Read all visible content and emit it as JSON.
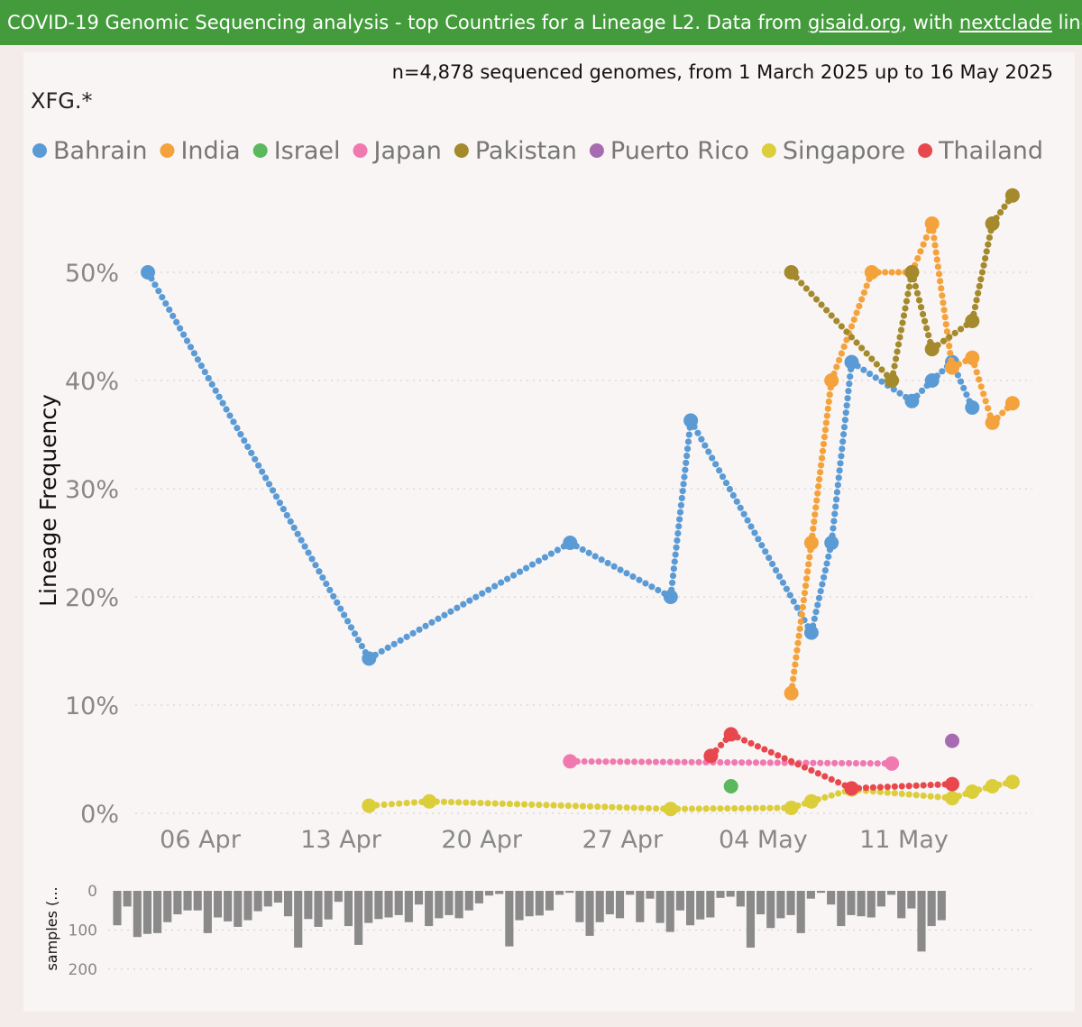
{
  "header": {
    "part1": "COVID-19 Genomic Sequencing analysis - top Countries for a Lineage L2. Data from ",
    "link1": "gisaid.org",
    "part2": ", with ",
    "link2": "nextclade",
    "part3": " lineages Sourc"
  },
  "subtitle": "n=4,878 sequenced genomes, from 1 March 2025 up to 16 May 2025",
  "lineage": "XFG.*",
  "colors": {
    "Bahrain": "#5b9bd5",
    "India": "#f4a23b",
    "Israel": "#5cb85c",
    "Japan": "#f07ab0",
    "Pakistan": "#a48a2c",
    "Puerto Rico": "#a66bb0",
    "Singapore": "#dccd3a",
    "Thailand": "#e8484d",
    "bars": "#8a8a8a"
  },
  "chart_data": [
    {
      "type": "line",
      "ylabel": "Lineage Frequency",
      "ylim": [
        0,
        60
      ],
      "yticks": [
        "0%",
        "10%",
        "20%",
        "30%",
        "40%",
        "50%"
      ],
      "xticks": [
        {
          "day": 6,
          "label": "06 Apr"
        },
        {
          "day": 13,
          "label": "13 Apr"
        },
        {
          "day": 20,
          "label": "20 Apr"
        },
        {
          "day": 27,
          "label": "27 Apr"
        },
        {
          "day": 34,
          "label": "04 May"
        },
        {
          "day": 41,
          "label": "11 May"
        }
      ],
      "x_range_days": [
        3,
        46
      ],
      "legend_position": "top",
      "series": [
        {
          "name": "Bahrain",
          "points": [
            [
              3.4,
              50
            ],
            [
              14.4,
              14.3
            ],
            [
              24.4,
              25
            ],
            [
              29.4,
              20
            ],
            [
              30.4,
              36.3
            ],
            [
              36.4,
              16.7
            ],
            [
              37.4,
              25
            ],
            [
              38.4,
              41.7
            ],
            [
              41.4,
              38.1
            ],
            [
              42.4,
              40
            ],
            [
              43.4,
              41.7
            ],
            [
              44.4,
              37.5
            ]
          ]
        },
        {
          "name": "India",
          "points": [
            [
              35.4,
              11.1
            ],
            [
              36.4,
              25
            ],
            [
              37.4,
              40
            ],
            [
              39.4,
              50
            ],
            [
              41.4,
              50
            ],
            [
              42.4,
              54.5
            ],
            [
              43.4,
              41.2
            ],
            [
              44.4,
              42.1
            ],
            [
              45.4,
              36.1
            ],
            [
              46.4,
              37.9
            ]
          ]
        },
        {
          "name": "Israel",
          "points": [
            [
              32.4,
              2.5
            ]
          ]
        },
        {
          "name": "Japan",
          "points": [
            [
              24.4,
              4.8
            ],
            [
              40.4,
              4.6
            ]
          ]
        },
        {
          "name": "Pakistan",
          "points": [
            [
              35.4,
              50
            ],
            [
              40.4,
              40
            ],
            [
              41.4,
              50
            ],
            [
              42.4,
              42.9
            ],
            [
              44.4,
              45.5
            ],
            [
              45.4,
              54.5
            ],
            [
              46.4,
              57.1
            ]
          ]
        },
        {
          "name": "Puerto Rico",
          "points": [
            [
              43.4,
              6.7
            ]
          ]
        },
        {
          "name": "Singapore",
          "points": [
            [
              14.4,
              0.7
            ],
            [
              17.4,
              1.1
            ],
            [
              29.4,
              0.4
            ],
            [
              35.4,
              0.5
            ],
            [
              36.4,
              1.1
            ],
            [
              38.4,
              2.2
            ],
            [
              43.4,
              1.4
            ],
            [
              44.4,
              2
            ],
            [
              45.4,
              2.5
            ],
            [
              46.4,
              2.9
            ]
          ]
        },
        {
          "name": "Thailand",
          "points": [
            [
              31.4,
              5.3
            ],
            [
              32.4,
              7.3
            ],
            [
              38.4,
              2.3
            ],
            [
              43.4,
              2.7
            ]
          ]
        }
      ]
    },
    {
      "type": "bar",
      "ylabel": "samples (...",
      "ylim": [
        0,
        200
      ],
      "yticks": [
        "0",
        "100",
        "200"
      ],
      "x_start_day": 3.4,
      "x_step_day": 0.5,
      "values": [
        88,
        40,
        118,
        110,
        108,
        80,
        60,
        50,
        50,
        108,
        68,
        78,
        92,
        75,
        52,
        40,
        30,
        65,
        145,
        72,
        92,
        73,
        28,
        90,
        138,
        82,
        72,
        68,
        62,
        80,
        35,
        90,
        70,
        62,
        70,
        50,
        32,
        12,
        8,
        142,
        75,
        65,
        63,
        50,
        10,
        5,
        80,
        115,
        80,
        60,
        70,
        10,
        80,
        20,
        82,
        105,
        50,
        88,
        73,
        68,
        18,
        15,
        40,
        145,
        60,
        95,
        70,
        62,
        108,
        20,
        5,
        35,
        90,
        62,
        65,
        68,
        40,
        10,
        70,
        45,
        155,
        90,
        75
      ]
    }
  ]
}
